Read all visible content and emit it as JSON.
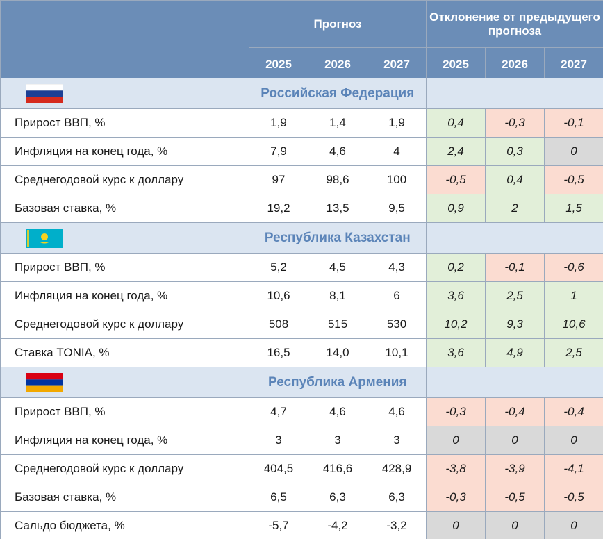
{
  "header": {
    "forecast_label": "Прогноз",
    "deviation_label": "Отклонение от предыдущего прогноза",
    "forecast_years": [
      "2025",
      "2026",
      "2027"
    ],
    "deviation_years": [
      "2025",
      "2026",
      "2027"
    ]
  },
  "colors": {
    "header_bg": "#6b8db7",
    "section_bg": "#dbe5f1",
    "section_title": "#5b84b8",
    "positive": "#e2efd9",
    "negative": "#fbdcd1",
    "zero": "#d9d9d9"
  },
  "sections": [
    {
      "title": "Российская Федерация",
      "flag_icon": "russia-flag-icon",
      "rows": [
        {
          "label": "Прирост ВВП, %",
          "forecast": [
            "1,9",
            "1,4",
            "1,9"
          ],
          "deviation": [
            "0,4",
            "-0,3",
            "-0,1"
          ]
        },
        {
          "label": "Инфляция на конец года, %",
          "forecast": [
            "7,9",
            "4,6",
            "4"
          ],
          "deviation": [
            "2,4",
            "0,3",
            "0"
          ]
        },
        {
          "label": "Среднегодовой курс к доллару",
          "forecast": [
            "97",
            "98,6",
            "100"
          ],
          "deviation": [
            "-0,5",
            "0,4",
            "-0,5"
          ]
        },
        {
          "label": "Базовая ставка, %",
          "forecast": [
            "19,2",
            "13,5",
            "9,5"
          ],
          "deviation": [
            "0,9",
            "2",
            "1,5"
          ]
        }
      ]
    },
    {
      "title": "Республика Казахстан",
      "flag_icon": "kazakhstan-flag-icon",
      "rows": [
        {
          "label": "Прирост ВВП, %",
          "forecast": [
            "5,2",
            "4,5",
            "4,3"
          ],
          "deviation": [
            "0,2",
            "-0,1",
            "-0,6"
          ]
        },
        {
          "label": "Инфляция на конец года, %",
          "forecast": [
            "10,6",
            "8,1",
            "6"
          ],
          "deviation": [
            "3,6",
            "2,5",
            "1"
          ]
        },
        {
          "label": "Среднегодовой курс к доллару",
          "forecast": [
            "508",
            "515",
            "530"
          ],
          "deviation": [
            "10,2",
            "9,3",
            "10,6"
          ]
        },
        {
          "label": "Ставка TONIA, %",
          "forecast": [
            "16,5",
            "14,0",
            "10,1"
          ],
          "deviation": [
            "3,6",
            "4,9",
            "2,5"
          ]
        }
      ]
    },
    {
      "title": "Республика Армения",
      "flag_icon": "armenia-flag-icon",
      "rows": [
        {
          "label": "Прирост ВВП, %",
          "forecast": [
            "4,7",
            "4,6",
            "4,6"
          ],
          "deviation": [
            "-0,3",
            "-0,4",
            "-0,4"
          ]
        },
        {
          "label": "Инфляция на конец года, %",
          "forecast": [
            "3",
            "3",
            "3"
          ],
          "deviation": [
            "0",
            "0",
            "0"
          ]
        },
        {
          "label": "Среднегодовой курс к доллару",
          "forecast": [
            "404,5",
            "416,6",
            "428,9"
          ],
          "deviation": [
            "-3,8",
            "-3,9",
            "-4,1"
          ]
        },
        {
          "label": "Базовая ставка, %",
          "forecast": [
            "6,5",
            "6,3",
            "6,3"
          ],
          "deviation": [
            "-0,3",
            "-0,5",
            "-0,5"
          ]
        },
        {
          "label": "Сальдо бюджета, %",
          "forecast": [
            "-5,7",
            "-4,2",
            "-3,2"
          ],
          "deviation": [
            "0",
            "0",
            "0"
          ]
        }
      ]
    }
  ]
}
